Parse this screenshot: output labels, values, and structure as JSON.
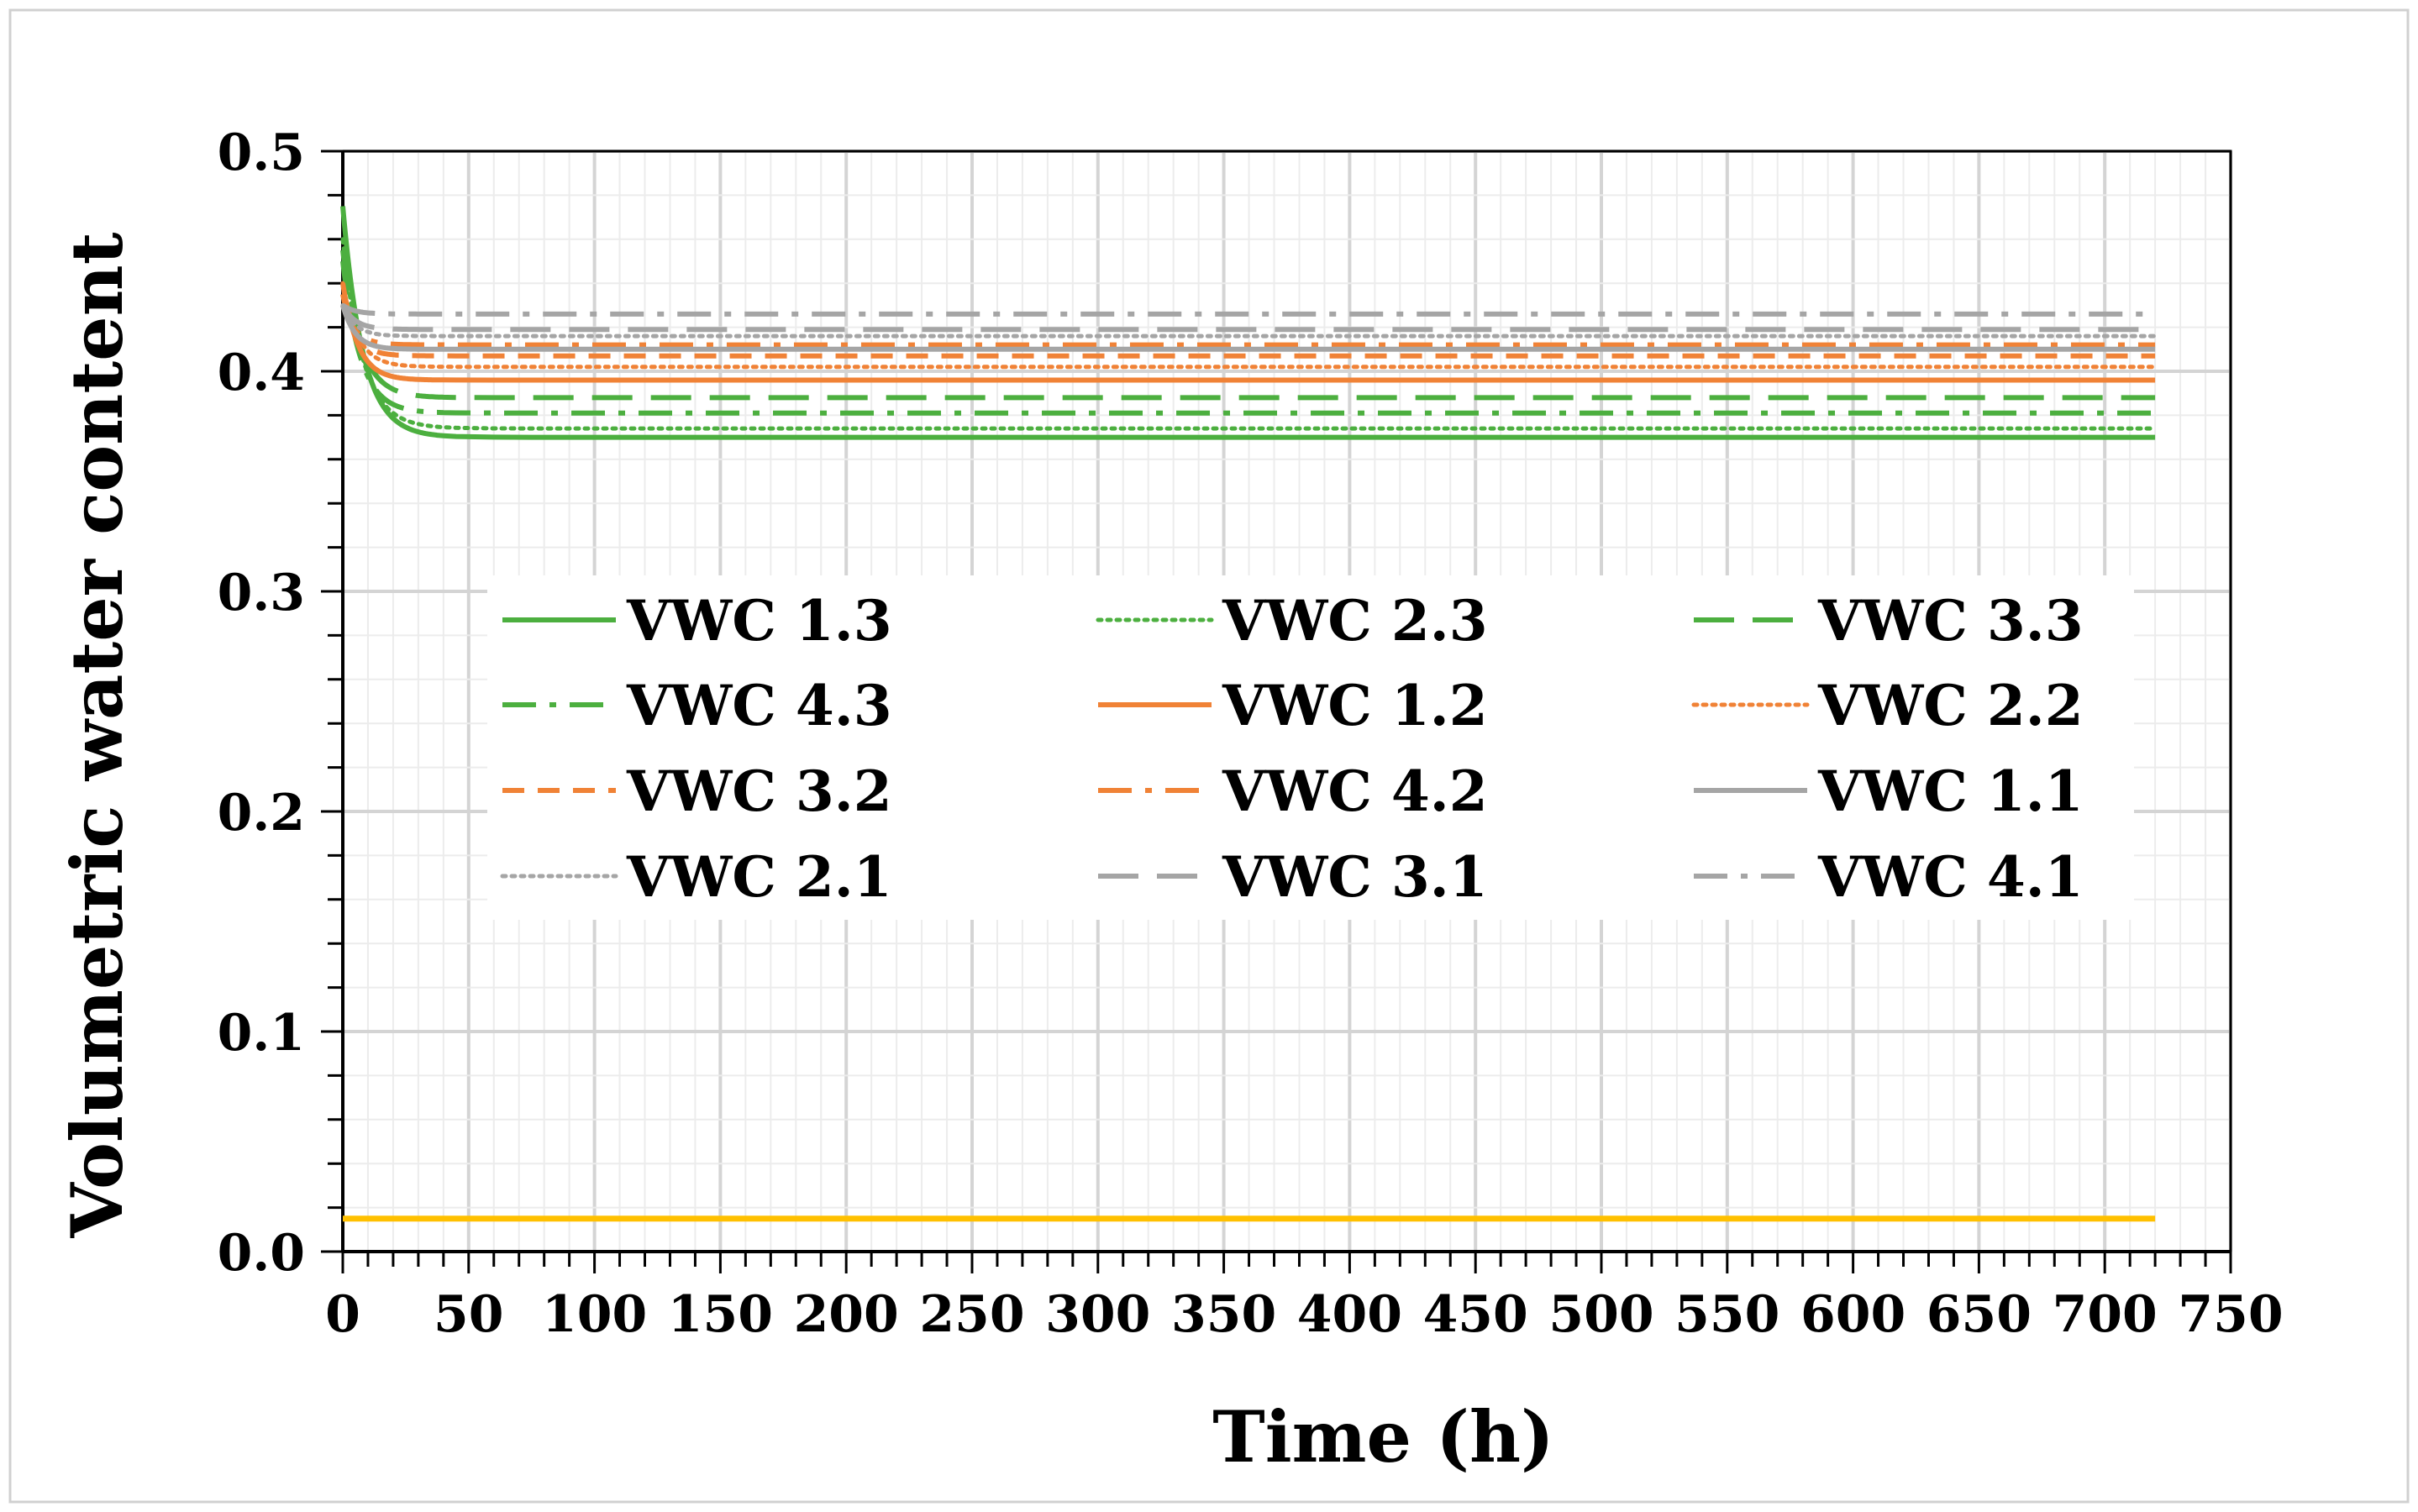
{
  "chart_data": {
    "type": "line",
    "title": "",
    "xlabel": "Time (h)",
    "ylabel": "Volumetric water content",
    "xlim": [
      0,
      750
    ],
    "ylim": [
      0,
      0.5
    ],
    "x_ticks": [
      "0",
      "50",
      "100",
      "150",
      "200",
      "250",
      "300",
      "350",
      "400",
      "450",
      "500",
      "550",
      "600",
      "650",
      "700",
      "750"
    ],
    "y_ticks": [
      "0.0",
      "0.1",
      "0.2",
      "0.3",
      "0.4",
      "0.5"
    ],
    "x_minor_step": 10,
    "y_minor_step": 0.02,
    "grid": true,
    "legend_position": "center",
    "legend_columns": 3,
    "series": [
      {
        "name": "VWC 1.3",
        "color": "#4caf3f",
        "dash": "solid",
        "start": 0.475,
        "final": 0.37,
        "tau": 8,
        "x_end": 720
      },
      {
        "name": "VWC 2.3",
        "color": "#4caf3f",
        "dash": "dotted",
        "start": 0.46,
        "final": 0.374,
        "tau": 8,
        "x_end": 720
      },
      {
        "name": "VWC 3.3",
        "color": "#4caf3f",
        "dash": "longdash",
        "start": 0.455,
        "final": 0.388,
        "tau": 7,
        "x_end": 720
      },
      {
        "name": "VWC 4.3",
        "color": "#4caf3f",
        "dash": "dashdot",
        "start": 0.45,
        "final": 0.381,
        "tau": 7,
        "x_end": 720
      },
      {
        "name": "VWC 1.2",
        "color": "#f08236",
        "dash": "solid",
        "start": 0.44,
        "final": 0.396,
        "tau": 6,
        "x_end": 720
      },
      {
        "name": "VWC 2.2",
        "color": "#f08236",
        "dash": "dotted",
        "start": 0.44,
        "final": 0.402,
        "tau": 6,
        "x_end": 720
      },
      {
        "name": "VWC 3.2",
        "color": "#f08236",
        "dash": "dashed",
        "start": 0.435,
        "final": 0.407,
        "tau": 5,
        "x_end": 720
      },
      {
        "name": "VWC 4.2",
        "color": "#f08236",
        "dash": "dashdot",
        "start": 0.43,
        "final": 0.412,
        "tau": 5,
        "x_end": 720
      },
      {
        "name": "VWC 1.1",
        "color": "#a5a5a5",
        "dash": "solid",
        "start": 0.43,
        "final": 0.41,
        "tau": 5,
        "x_end": 720
      },
      {
        "name": "VWC 2.1",
        "color": "#a5a5a5",
        "dash": "dotted",
        "start": 0.43,
        "final": 0.416,
        "tau": 5,
        "x_end": 720
      },
      {
        "name": "VWC 3.1",
        "color": "#a5a5a5",
        "dash": "longdash",
        "start": 0.43,
        "final": 0.419,
        "tau": 5,
        "x_end": 720
      },
      {
        "name": "VWC 4.1",
        "color": "#a5a5a5",
        "dash": "dashdot",
        "start": 0.43,
        "final": 0.426,
        "tau": 5,
        "x_end": 720
      }
    ],
    "baseline_series": {
      "name": "",
      "color": "#ffc000",
      "value": 0.015,
      "x_end": 720
    }
  }
}
